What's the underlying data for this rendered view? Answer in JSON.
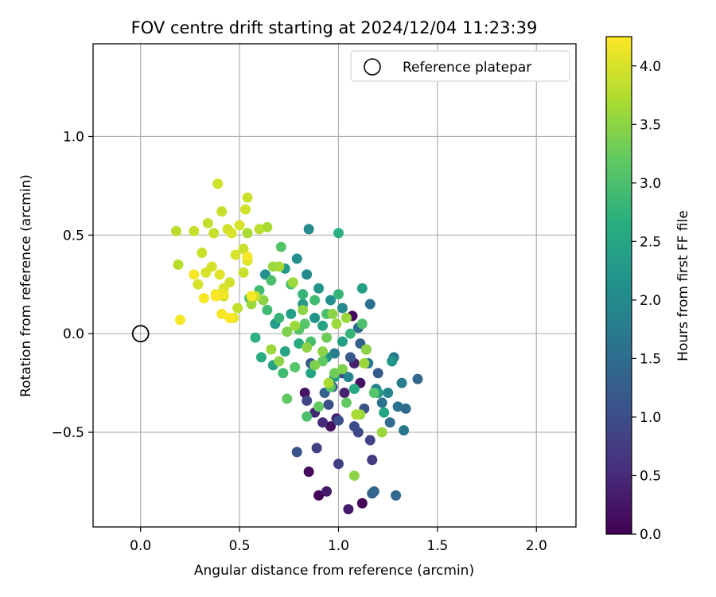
{
  "chart_data": {
    "type": "scatter",
    "title": "FOV centre drift starting at 2024/12/04 11:23:39",
    "xlabel": "Angular distance from reference (arcmin)",
    "ylabel": "Rotation from reference (arcmin)",
    "xlim": [
      -0.24,
      2.2
    ],
    "ylim": [
      -0.98,
      1.47
    ],
    "xticks": [
      "0.0",
      "0.5",
      "1.0",
      "1.5",
      "2.0"
    ],
    "yticks": [
      "−0.5",
      "0.0",
      "0.5",
      "1.0"
    ],
    "xtick_values": [
      0,
      0.5,
      1.0,
      1.5,
      2.0
    ],
    "ytick_values": [
      -0.5,
      0,
      0.5,
      1.0
    ],
    "grid": true,
    "legend": {
      "label": "Reference platepar",
      "placement": "top-right"
    },
    "reference_point": {
      "x": 0,
      "y": 0
    },
    "colorbar": {
      "label": "Hours from first FF file",
      "colormap": "viridis",
      "range": [
        0,
        4.25
      ],
      "ticks": [
        "0.0",
        "0.5",
        "1.0",
        "1.5",
        "2.0",
        "2.5",
        "3.0",
        "3.5",
        "4.0"
      ],
      "tick_values": [
        0,
        0.5,
        1.0,
        1.5,
        2.0,
        2.5,
        3.0,
        3.5,
        4.0
      ]
    },
    "series": [
      {
        "x": [
          1.05,
          0.9,
          1.12,
          0.94,
          0.85,
          1.07,
          0.96,
          1.11,
          0.83,
          0.99,
          1.03,
          1.08,
          0.88,
          0.92
        ],
        "y": [
          -0.89,
          -0.82,
          -0.86,
          -0.8,
          -0.7,
          0.09,
          -0.47,
          -0.25,
          -0.3,
          -0.43,
          -0.3,
          -0.15,
          -0.4,
          -0.45
        ],
        "hours": [
          0.3,
          0.05,
          0.05,
          0.3,
          0.1,
          0.1,
          0.2,
          0.2,
          0.2,
          0.3,
          0.4,
          0.4,
          0.45,
          0.5
        ]
      },
      {
        "x": [
          0.89,
          1.0,
          1.1,
          1.17,
          1.16,
          0.95,
          0.79,
          0.84,
          1.02,
          1.08,
          1.13,
          0.97,
          1.2,
          1.06,
          1.14,
          0.93,
          1.0,
          0.86,
          1.11
        ],
        "y": [
          -0.58,
          -0.66,
          -0.5,
          -0.64,
          -0.54,
          -0.36,
          -0.6,
          -0.34,
          -0.2,
          -0.47,
          -0.38,
          -0.27,
          -0.2,
          -0.12,
          -0.08,
          -0.3,
          -0.44,
          -0.15,
          -0.05
        ],
        "hours": [
          0.8,
          0.8,
          0.9,
          0.75,
          0.85,
          1.0,
          1.1,
          0.9,
          0.95,
          1.0,
          1.05,
          1.1,
          1.2,
          1.15,
          1.25,
          1.3,
          1.0,
          1.2,
          1.3
        ]
      },
      {
        "x": [
          1.17,
          1.18,
          1.29,
          1.26,
          1.3,
          1.34,
          1.33,
          1.4,
          1.28,
          1.32,
          1.25,
          1.22,
          1.19,
          1.1,
          1.15,
          1.05,
          0.98,
          1.16
        ],
        "y": [
          -0.81,
          -0.8,
          -0.82,
          -0.45,
          -0.37,
          -0.38,
          -0.49,
          -0.23,
          -0.12,
          -0.25,
          -0.3,
          -0.35,
          -0.28,
          0.03,
          -0.15,
          -0.22,
          -0.1,
          0.15
        ],
        "hours": [
          1.3,
          1.4,
          1.45,
          1.5,
          1.6,
          1.5,
          1.7,
          1.4,
          1.7,
          1.8,
          1.9,
          1.6,
          1.8,
          1.5,
          1.7,
          1.9,
          1.8,
          1.6
        ]
      },
      {
        "x": [
          0.85,
          0.79,
          0.73,
          0.84,
          0.9,
          0.96,
          1.02,
          0.88,
          0.76,
          0.68,
          0.63,
          1.12,
          1.27,
          1.23,
          1.2,
          1.08,
          1.02,
          0.94,
          0.86,
          0.8,
          0.73,
          0.67,
          0.61,
          0.82,
          0.92,
          0.98
        ],
        "y": [
          0.53,
          0.38,
          0.33,
          0.3,
          0.23,
          0.17,
          0.13,
          0.08,
          0.1,
          0.05,
          0.3,
          0.23,
          -0.14,
          -0.4,
          -0.3,
          -0.28,
          -0.04,
          -0.12,
          -0.2,
          -0.05,
          -0.09,
          -0.16,
          -0.12,
          0.15,
          0.04,
          -0.22
        ],
        "hours": [
          2.0,
          2.1,
          2.3,
          2.0,
          2.2,
          2.1,
          2.0,
          2.2,
          2.4,
          2.3,
          2.1,
          2.4,
          2.2,
          2.5,
          2.3,
          2.6,
          2.4,
          2.2,
          2.5,
          2.6,
          2.5,
          2.4,
          2.6,
          2.3,
          2.5,
          2.3
        ]
      },
      {
        "x": [
          0.58,
          0.64,
          0.7,
          0.76,
          0.82,
          0.88,
          0.94,
          1.0,
          1.06,
          1.12,
          1.18,
          0.72,
          0.78,
          0.84,
          0.9,
          0.96,
          0.66,
          0.6,
          0.74,
          0.8,
          0.86,
          0.92,
          0.98,
          1.04,
          0.55,
          0.71,
          1.0,
          0.83
        ],
        "y": [
          -0.02,
          0.12,
          0.08,
          0.25,
          0.2,
          0.17,
          0.1,
          0.51,
          0.0,
          0.05,
          -0.3,
          -0.2,
          -0.17,
          -0.42,
          -0.37,
          -0.27,
          0.27,
          0.22,
          -0.33,
          0.02,
          -0.04,
          -0.14,
          -0.2,
          -0.35,
          0.18,
          0.44,
          0.2,
          0.05
        ],
        "hours": [
          2.7,
          2.9,
          2.8,
          3.0,
          2.8,
          2.9,
          3.0,
          2.7,
          2.8,
          3.0,
          3.1,
          2.9,
          3.1,
          3.0,
          3.2,
          3.1,
          3.0,
          2.9,
          3.2,
          3.1,
          3.0,
          3.2,
          3.3,
          3.2,
          3.0,
          3.1,
          2.8,
          3.1
        ]
      },
      {
        "x": [
          0.88,
          0.92,
          0.94,
          0.97,
          0.99,
          1.02,
          1.08,
          1.11,
          1.14,
          1.22,
          0.84,
          0.78,
          0.74,
          0.7,
          0.66,
          0.62,
          0.56,
          0.7,
          0.77,
          0.82,
          0.95,
          1.04,
          1.09,
          0.54,
          0.6,
          0.64,
          0.67,
          1.13
        ],
        "y": [
          -0.16,
          -0.09,
          -0.02,
          0.1,
          0.05,
          -0.18,
          -0.72,
          -0.41,
          -0.08,
          -0.5,
          -0.07,
          0.04,
          0.01,
          -0.14,
          -0.08,
          0.17,
          0.15,
          0.34,
          0.26,
          0.12,
          -0.25,
          0.08,
          -0.41,
          0.51,
          0.53,
          0.54,
          0.34,
          -0.15
        ],
        "hours": [
          3.4,
          3.5,
          3.3,
          3.5,
          3.6,
          3.4,
          3.5,
          3.6,
          3.5,
          3.6,
          3.5,
          3.6,
          3.4,
          3.5,
          3.6,
          3.5,
          3.6,
          3.7,
          3.6,
          3.5,
          3.7,
          3.6,
          3.7,
          3.7,
          3.8,
          3.7,
          3.6,
          3.6
        ]
      },
      {
        "x": [
          0.18,
          0.19,
          0.27,
          0.31,
          0.34,
          0.37,
          0.39,
          0.41,
          0.44,
          0.46,
          0.48,
          0.52,
          0.53,
          0.54,
          0.29,
          0.36,
          0.42,
          0.49,
          0.52,
          0.58,
          0.33,
          0.4,
          0.45,
          0.5,
          0.42,
          0.38,
          0.47,
          0.54
        ],
        "y": [
          0.52,
          0.35,
          0.52,
          0.41,
          0.56,
          0.51,
          0.76,
          0.62,
          0.53,
          0.51,
          0.4,
          0.43,
          0.63,
          0.69,
          0.25,
          0.34,
          0.19,
          0.13,
          0.31,
          0.19,
          0.31,
          0.3,
          0.26,
          0.55,
          0.23,
          0.2,
          0.08,
          0.37
        ],
        "hours": [
          3.8,
          3.8,
          3.9,
          3.9,
          3.85,
          3.9,
          3.95,
          3.9,
          3.95,
          4.0,
          4.0,
          3.9,
          3.95,
          3.9,
          4.0,
          4.0,
          3.9,
          3.85,
          3.9,
          3.9,
          4.0,
          4.05,
          3.95,
          4.0,
          4.0,
          4.1,
          4.1,
          4.05
        ]
      },
      {
        "x": [
          0.2,
          0.27,
          0.32,
          0.38,
          0.41,
          0.45,
          0.56,
          0.42,
          0.54
        ],
        "y": [
          0.07,
          0.3,
          0.18,
          0.19,
          0.1,
          0.08,
          0.19,
          0.2,
          0.39
        ],
        "hours": [
          4.2,
          4.2,
          4.2,
          4.25,
          4.2,
          4.25,
          4.2,
          4.15,
          4.2
        ]
      }
    ]
  }
}
